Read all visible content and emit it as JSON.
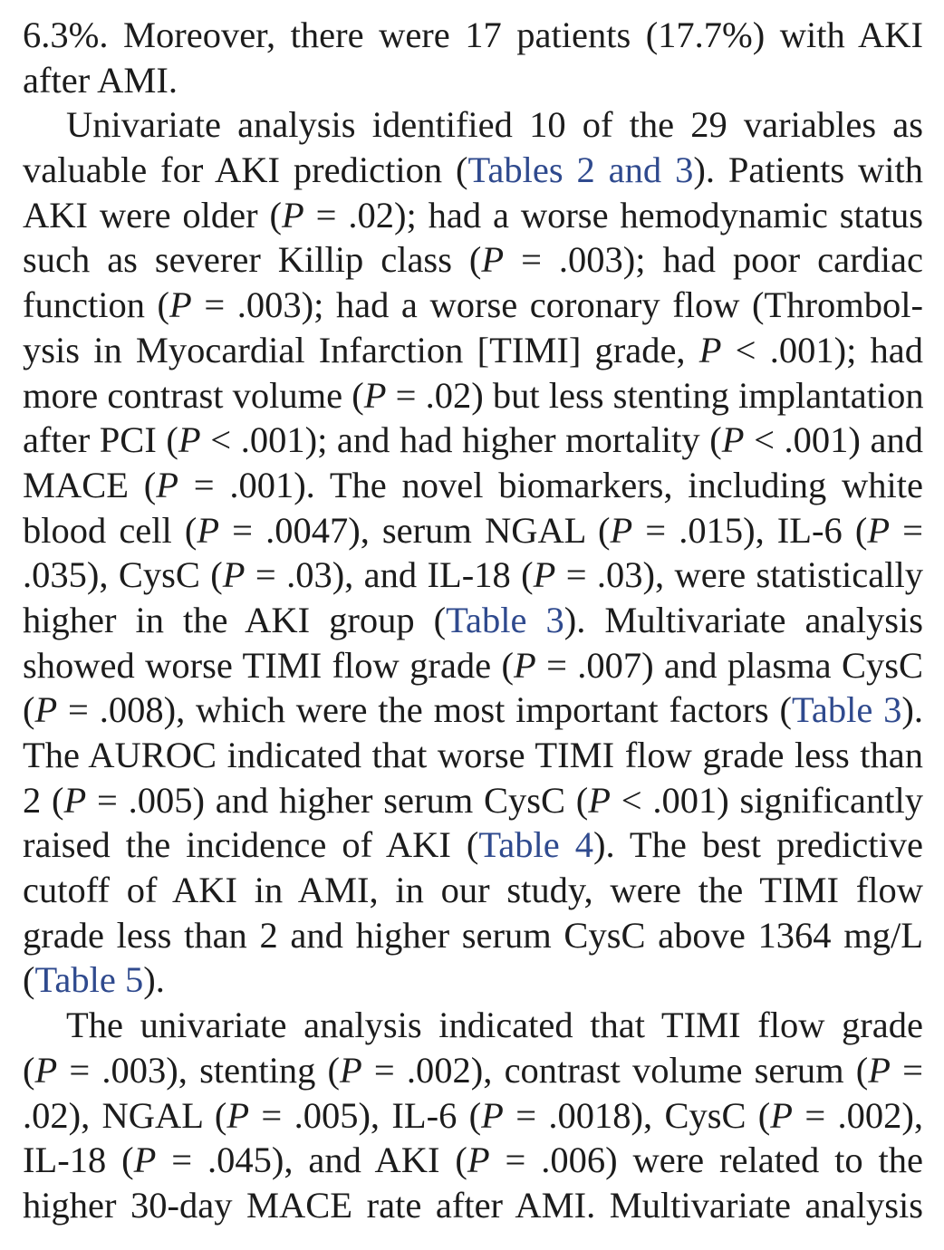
{
  "paragraphs": [
    {
      "indent": false,
      "lines": [
        [
          {
            "t": "6.3%. Moreover, there were 17 patients (17.7%) with AKI"
          }
        ],
        [
          {
            "t": "after AMI."
          }
        ]
      ]
    },
    {
      "indent": true,
      "lines": [
        [
          {
            "t": "Univariate analysis identified 10 of the 29 variables as"
          }
        ],
        [
          {
            "t": "valuable for AKI prediction ("
          },
          {
            "t": "Tables 2 and 3",
            "s": "ref"
          },
          {
            "t": "). Patients with"
          }
        ],
        [
          {
            "t": "AKI were older ("
          },
          {
            "t": "P",
            "s": "it"
          },
          {
            "t": " = .02); had a worse hemodynamic status"
          }
        ],
        [
          {
            "t": "such as severer Killip class ("
          },
          {
            "t": "P",
            "s": "it"
          },
          {
            "t": " = .003); had poor cardiac"
          }
        ],
        [
          {
            "t": "function ("
          },
          {
            "t": "P",
            "s": "it"
          },
          {
            "t": " = .003); had a worse coronary flow (Thrombol-"
          }
        ],
        [
          {
            "t": "ysis in Myocardial Infarction [TIMI] grade, "
          },
          {
            "t": "P",
            "s": "it"
          },
          {
            "t": " < .001); had"
          }
        ],
        [
          {
            "t": "more contrast volume ("
          },
          {
            "t": "P",
            "s": "it"
          },
          {
            "t": " = .02) but less stenting implantation"
          }
        ],
        [
          {
            "t": "after PCI ("
          },
          {
            "t": "P",
            "s": "it"
          },
          {
            "t": " < .001); and had higher mortality ("
          },
          {
            "t": "P",
            "s": "it"
          },
          {
            "t": " < .001) and"
          }
        ],
        [
          {
            "t": "MACE ("
          },
          {
            "t": "P",
            "s": "it"
          },
          {
            "t": " = .001). The novel biomarkers, including white"
          }
        ],
        [
          {
            "t": "blood cell ("
          },
          {
            "t": "P",
            "s": "it"
          },
          {
            "t": " = .0047), serum NGAL ("
          },
          {
            "t": "P",
            "s": "it"
          },
          {
            "t": " = .015), IL-6 ("
          },
          {
            "t": "P",
            "s": "it"
          },
          {
            "t": " ="
          }
        ],
        [
          {
            "t": ".035), CysC ("
          },
          {
            "t": "P",
            "s": "it"
          },
          {
            "t": " = .03), and IL-18 ("
          },
          {
            "t": "P",
            "s": "it"
          },
          {
            "t": " = .03), were statistically"
          }
        ],
        [
          {
            "t": "higher in the AKI group ("
          },
          {
            "t": "Table 3",
            "s": "ref"
          },
          {
            "t": "). Multivariate analysis"
          }
        ],
        [
          {
            "t": "showed worse TIMI flow grade ("
          },
          {
            "t": "P",
            "s": "it"
          },
          {
            "t": " = .007) and plasma CysC"
          }
        ],
        [
          {
            "t": "("
          },
          {
            "t": "P",
            "s": "it"
          },
          {
            "t": " = .008), which were the most important factors ("
          },
          {
            "t": "Table 3",
            "s": "ref"
          },
          {
            "t": ")."
          }
        ],
        [
          {
            "t": "The AUROC indicated that worse TIMI flow grade less than"
          }
        ],
        [
          {
            "t": "2 ("
          },
          {
            "t": "P",
            "s": "it"
          },
          {
            "t": " = .005) and higher serum CysC ("
          },
          {
            "t": "P",
            "s": "it"
          },
          {
            "t": " < .001) significantly"
          }
        ],
        [
          {
            "t": "raised the incidence of AKI ("
          },
          {
            "t": "Table 4",
            "s": "ref"
          },
          {
            "t": "). The best predictive"
          }
        ],
        [
          {
            "t": "cutoff of AKI in AMI, in our study, were the TIMI flow"
          }
        ],
        [
          {
            "t": "grade less than 2 and higher serum CysC above 1364 mg/L"
          }
        ],
        [
          {
            "t": "("
          },
          {
            "t": "Table 5",
            "s": "ref"
          },
          {
            "t": ")."
          }
        ]
      ]
    },
    {
      "indent": true,
      "lines": [
        [
          {
            "t": "The univariate analysis indicated that TIMI flow grade"
          }
        ],
        [
          {
            "t": "("
          },
          {
            "t": "P",
            "s": "it"
          },
          {
            "t": " = .003), stenting ("
          },
          {
            "t": "P",
            "s": "it"
          },
          {
            "t": " = .002), contrast volume serum ("
          },
          {
            "t": "P",
            "s": "it"
          },
          {
            "t": " ="
          }
        ],
        [
          {
            "t": ".02), NGAL ("
          },
          {
            "t": "P",
            "s": "it"
          },
          {
            "t": " = .005), IL-6 ("
          },
          {
            "t": "P",
            "s": "it"
          },
          {
            "t": " = .0018), CysC ("
          },
          {
            "t": "P",
            "s": "it"
          },
          {
            "t": " = .002),"
          }
        ],
        [
          {
            "t": "IL-18 ("
          },
          {
            "t": "P",
            "s": "it"
          },
          {
            "t": " = .045), and AKI ("
          },
          {
            "t": "P",
            "s": "it"
          },
          {
            "t": " = .006) were related to the"
          }
        ],
        [
          {
            "t": "higher 30-day MACE rate after AMI. Multivariate analysis"
          }
        ]
      ],
      "continues": true
    }
  ]
}
